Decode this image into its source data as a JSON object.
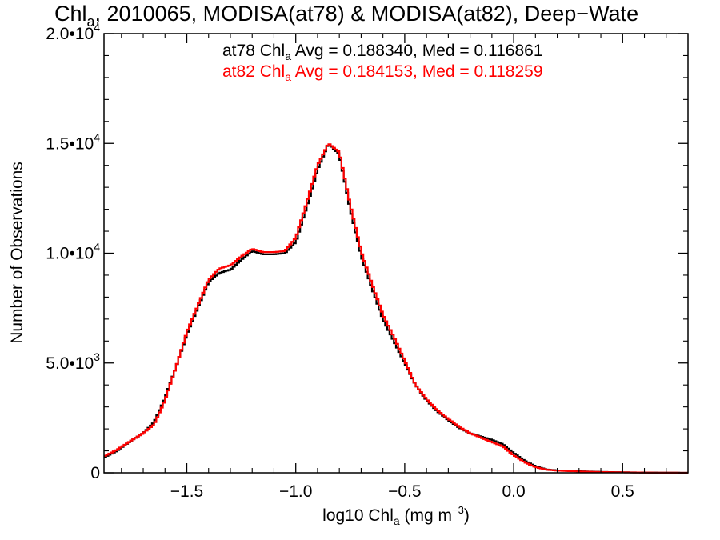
{
  "chart_data": {
    "type": "line",
    "title": {
      "prefix": "Chl",
      "sub": "a",
      "rest": ", 2010065, MODISA(at78) & MODISA(at82), Deep−Wate"
    },
    "xlabel": {
      "prefix": "log10 Chl",
      "sub": "a",
      "mid": " (mg m",
      "sup": "−3",
      "suffix": ")"
    },
    "ylabel": "Number of Observations",
    "xlim": [
      -1.88,
      0.8
    ],
    "ylim": [
      0,
      20000
    ],
    "x_ticks": [
      {
        "value": -1.5,
        "label": "−1.5"
      },
      {
        "value": -1.0,
        "label": "−1.0"
      },
      {
        "value": -0.5,
        "label": "−0.5"
      },
      {
        "value": 0.0,
        "label": "0.0"
      },
      {
        "value": 0.5,
        "label": "0.5"
      }
    ],
    "y_ticks": [
      {
        "value": 0,
        "mantissa": "0",
        "exp": ""
      },
      {
        "value": 5000,
        "mantissa": "5.0•10",
        "exp": "3"
      },
      {
        "value": 10000,
        "mantissa": "1.0•10",
        "exp": "4"
      },
      {
        "value": 15000,
        "mantissa": "1.5•10",
        "exp": "4"
      },
      {
        "value": 20000,
        "mantissa": "2.0•10",
        "exp": "4"
      }
    ],
    "stats": [
      {
        "pre": "at78 Chl",
        "sub": "a",
        "post": " Avg = 0.188340, Med = 0.116861",
        "color": "#000000"
      },
      {
        "pre": "at82 Chl",
        "sub": "a",
        "post": " Avg = 0.184153, Med = 0.118259",
        "color": "#ff0000"
      }
    ],
    "series": [
      {
        "color": "#000000",
        "points": [
          [
            -1.88,
            700
          ],
          [
            -1.82,
            1000
          ],
          [
            -1.75,
            1500
          ],
          [
            -1.7,
            1800
          ],
          [
            -1.65,
            2300
          ],
          [
            -1.6,
            3400
          ],
          [
            -1.55,
            4800
          ],
          [
            -1.5,
            6300
          ],
          [
            -1.45,
            7500
          ],
          [
            -1.4,
            8700
          ],
          [
            -1.35,
            9100
          ],
          [
            -1.3,
            9250
          ],
          [
            -1.25,
            9700
          ],
          [
            -1.2,
            10100
          ],
          [
            -1.15,
            9950
          ],
          [
            -1.1,
            9950
          ],
          [
            -1.05,
            10000
          ],
          [
            -1.0,
            10500
          ],
          [
            -0.95,
            12100
          ],
          [
            -0.9,
            13800
          ],
          [
            -0.85,
            15000
          ],
          [
            -0.8,
            14500
          ],
          [
            -0.75,
            12000
          ],
          [
            -0.7,
            9900
          ],
          [
            -0.65,
            8400
          ],
          [
            -0.6,
            7000
          ],
          [
            -0.55,
            6000
          ],
          [
            -0.5,
            5000
          ],
          [
            -0.45,
            4000
          ],
          [
            -0.4,
            3300
          ],
          [
            -0.35,
            2800
          ],
          [
            -0.3,
            2400
          ],
          [
            -0.25,
            2050
          ],
          [
            -0.2,
            1800
          ],
          [
            -0.15,
            1650
          ],
          [
            -0.1,
            1500
          ],
          [
            -0.05,
            1300
          ],
          [
            0.0,
            900
          ],
          [
            0.05,
            550
          ],
          [
            0.1,
            300
          ],
          [
            0.15,
            150
          ],
          [
            0.2,
            110
          ],
          [
            0.3,
            70
          ],
          [
            0.4,
            40
          ],
          [
            0.5,
            25
          ],
          [
            0.6,
            12
          ],
          [
            0.7,
            5
          ],
          [
            0.8,
            2
          ]
        ]
      },
      {
        "color": "#ff0000",
        "points": [
          [
            -1.88,
            750
          ],
          [
            -1.82,
            1050
          ],
          [
            -1.75,
            1500
          ],
          [
            -1.7,
            1800
          ],
          [
            -1.65,
            2200
          ],
          [
            -1.6,
            3300
          ],
          [
            -1.55,
            4800
          ],
          [
            -1.5,
            6400
          ],
          [
            -1.45,
            7600
          ],
          [
            -1.4,
            8800
          ],
          [
            -1.35,
            9300
          ],
          [
            -1.3,
            9450
          ],
          [
            -1.25,
            9850
          ],
          [
            -1.2,
            10200
          ],
          [
            -1.15,
            10050
          ],
          [
            -1.1,
            10050
          ],
          [
            -1.05,
            10100
          ],
          [
            -1.0,
            10700
          ],
          [
            -0.95,
            12300
          ],
          [
            -0.9,
            14000
          ],
          [
            -0.85,
            15000
          ],
          [
            -0.8,
            14600
          ],
          [
            -0.75,
            12200
          ],
          [
            -0.7,
            10100
          ],
          [
            -0.65,
            8600
          ],
          [
            -0.6,
            7200
          ],
          [
            -0.55,
            6200
          ],
          [
            -0.5,
            5100
          ],
          [
            -0.45,
            4000
          ],
          [
            -0.4,
            3350
          ],
          [
            -0.35,
            2850
          ],
          [
            -0.3,
            2450
          ],
          [
            -0.25,
            2100
          ],
          [
            -0.2,
            1800
          ],
          [
            -0.15,
            1600
          ],
          [
            -0.1,
            1400
          ],
          [
            -0.05,
            1200
          ],
          [
            0.0,
            800
          ],
          [
            0.05,
            480
          ],
          [
            0.1,
            260
          ],
          [
            0.15,
            140
          ],
          [
            0.2,
            100
          ],
          [
            0.3,
            60
          ],
          [
            0.4,
            35
          ],
          [
            0.5,
            20
          ],
          [
            0.6,
            10
          ],
          [
            0.7,
            4
          ],
          [
            0.8,
            2
          ]
        ]
      }
    ]
  }
}
